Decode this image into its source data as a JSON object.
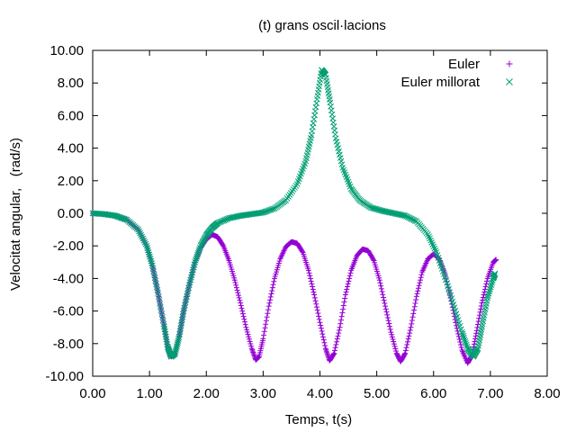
{
  "chart_data": {
    "type": "scatter",
    "title": "(t) grans oscil·lacions",
    "xlabel": "Temps, t(s)",
    "ylabel": "Velocitat angular,   (rad/s)",
    "xlim": [
      0,
      8
    ],
    "ylim": [
      -10,
      10
    ],
    "xticks": [
      "0.00",
      "1.00",
      "2.00",
      "3.00",
      "4.00",
      "5.00",
      "6.00",
      "7.00",
      "8.00"
    ],
    "yticks": [
      "-10.00",
      "-8.00",
      "-6.00",
      "-4.00",
      "-2.00",
      "0.00",
      "2.00",
      "4.00",
      "6.00",
      "8.00",
      "10.00"
    ],
    "grid": false,
    "legend_position": "top-right",
    "series": [
      {
        "name": "Euler",
        "marker": "plus",
        "color": "#9400d3",
        "points": [
          [
            0.0,
            0.0
          ],
          [
            0.2,
            -0.05
          ],
          [
            0.4,
            -0.15
          ],
          [
            0.6,
            -0.4
          ],
          [
            0.8,
            -1.0
          ],
          [
            0.95,
            -2.0
          ],
          [
            1.05,
            -3.2
          ],
          [
            1.15,
            -4.9
          ],
          [
            1.25,
            -6.8
          ],
          [
            1.32,
            -8.2
          ],
          [
            1.38,
            -8.8
          ],
          [
            1.45,
            -8.6
          ],
          [
            1.52,
            -7.6
          ],
          [
            1.6,
            -6.0
          ],
          [
            1.7,
            -4.4
          ],
          [
            1.8,
            -3.0
          ],
          [
            1.9,
            -2.1
          ],
          [
            2.0,
            -1.6
          ],
          [
            2.1,
            -1.3
          ],
          [
            2.2,
            -1.45
          ],
          [
            2.3,
            -2.0
          ],
          [
            2.4,
            -2.9
          ],
          [
            2.5,
            -4.1
          ],
          [
            2.6,
            -5.5
          ],
          [
            2.7,
            -7.0
          ],
          [
            2.8,
            -8.3
          ],
          [
            2.87,
            -9.0
          ],
          [
            2.93,
            -8.8
          ],
          [
            3.0,
            -7.7
          ],
          [
            3.1,
            -5.7
          ],
          [
            3.2,
            -4.0
          ],
          [
            3.3,
            -2.8
          ],
          [
            3.4,
            -2.05
          ],
          [
            3.5,
            -1.75
          ],
          [
            3.6,
            -1.85
          ],
          [
            3.7,
            -2.4
          ],
          [
            3.8,
            -3.5
          ],
          [
            3.9,
            -5.0
          ],
          [
            4.0,
            -6.7
          ],
          [
            4.1,
            -8.3
          ],
          [
            4.17,
            -9.05
          ],
          [
            4.25,
            -8.6
          ],
          [
            4.35,
            -7.0
          ],
          [
            4.45,
            -5.0
          ],
          [
            4.55,
            -3.5
          ],
          [
            4.65,
            -2.6
          ],
          [
            4.75,
            -2.2
          ],
          [
            4.85,
            -2.3
          ],
          [
            4.95,
            -2.9
          ],
          [
            5.05,
            -4.1
          ],
          [
            5.15,
            -5.7
          ],
          [
            5.25,
            -7.3
          ],
          [
            5.35,
            -8.6
          ],
          [
            5.42,
            -9.1
          ],
          [
            5.5,
            -8.6
          ],
          [
            5.6,
            -7.0
          ],
          [
            5.7,
            -5.1
          ],
          [
            5.8,
            -3.6
          ],
          [
            5.9,
            -2.8
          ],
          [
            6.0,
            -2.5
          ],
          [
            6.1,
            -2.8
          ],
          [
            6.2,
            -3.7
          ],
          [
            6.3,
            -5.2
          ],
          [
            6.4,
            -6.9
          ],
          [
            6.5,
            -8.4
          ],
          [
            6.6,
            -9.2
          ],
          [
            6.68,
            -8.7
          ],
          [
            6.76,
            -7.2
          ],
          [
            6.85,
            -5.5
          ],
          [
            6.95,
            -4.0
          ],
          [
            7.05,
            -3.0
          ],
          [
            7.1,
            -2.85
          ]
        ]
      },
      {
        "name": "Euler millorat",
        "marker": "cross",
        "color": "#009e73",
        "points": [
          [
            0.0,
            0.0
          ],
          [
            0.2,
            -0.05
          ],
          [
            0.4,
            -0.15
          ],
          [
            0.6,
            -0.4
          ],
          [
            0.8,
            -1.0
          ],
          [
            0.95,
            -2.0
          ],
          [
            1.05,
            -3.2
          ],
          [
            1.15,
            -4.9
          ],
          [
            1.25,
            -6.8
          ],
          [
            1.32,
            -8.2
          ],
          [
            1.38,
            -8.8
          ],
          [
            1.45,
            -8.6
          ],
          [
            1.52,
            -7.6
          ],
          [
            1.6,
            -6.0
          ],
          [
            1.7,
            -4.4
          ],
          [
            1.8,
            -3.0
          ],
          [
            1.9,
            -2.0
          ],
          [
            2.0,
            -1.35
          ],
          [
            2.1,
            -0.9
          ],
          [
            2.2,
            -0.6
          ],
          [
            2.4,
            -0.3
          ],
          [
            2.6,
            -0.15
          ],
          [
            2.8,
            -0.05
          ],
          [
            3.0,
            0.05
          ],
          [
            3.2,
            0.3
          ],
          [
            3.4,
            0.8
          ],
          [
            3.6,
            1.8
          ],
          [
            3.75,
            3.2
          ],
          [
            3.85,
            4.8
          ],
          [
            3.95,
            7.0
          ],
          [
            4.03,
            8.8
          ],
          [
            4.1,
            8.5
          ],
          [
            4.18,
            6.8
          ],
          [
            4.28,
            4.6
          ],
          [
            4.4,
            2.8
          ],
          [
            4.55,
            1.5
          ],
          [
            4.7,
            0.8
          ],
          [
            4.9,
            0.35
          ],
          [
            5.1,
            0.15
          ],
          [
            5.3,
            0.0
          ],
          [
            5.5,
            -0.15
          ],
          [
            5.7,
            -0.5
          ],
          [
            5.9,
            -1.3
          ],
          [
            6.05,
            -2.4
          ],
          [
            6.2,
            -3.9
          ],
          [
            6.35,
            -5.6
          ],
          [
            6.5,
            -7.3
          ],
          [
            6.6,
            -8.3
          ],
          [
            6.7,
            -8.8
          ],
          [
            6.78,
            -8.3
          ],
          [
            6.86,
            -6.8
          ],
          [
            6.95,
            -5.2
          ],
          [
            7.05,
            -4.0
          ],
          [
            7.08,
            -3.7
          ]
        ]
      }
    ]
  }
}
